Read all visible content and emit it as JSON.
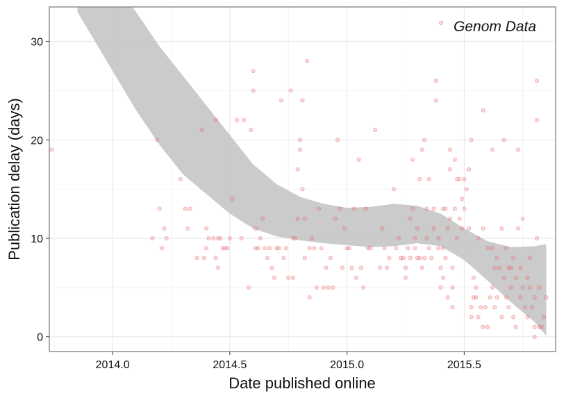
{
  "chart_data": {
    "type": "scatter",
    "title": "",
    "xlabel": "Date published online",
    "ylabel": "Publication delay (days)",
    "xlim": [
      2013.73,
      2015.89
    ],
    "ylim": [
      -1.5,
      33.5
    ],
    "x_ticks": [
      2014.0,
      2014.5,
      2015.0,
      2015.5
    ],
    "x_tick_labels": [
      "2014.0",
      "2014.5",
      "2015.0",
      "2015.5"
    ],
    "y_ticks": [
      0,
      10,
      20,
      30
    ],
    "y_tick_labels": [
      "0",
      "10",
      "20",
      "30"
    ],
    "grid": true,
    "legend_position": "top-right",
    "series": [
      {
        "name": "Genom Data",
        "points": [
          [
            2013.74,
            19
          ],
          [
            2014.17,
            10
          ],
          [
            2014.19,
            20
          ],
          [
            2014.2,
            13
          ],
          [
            2014.21,
            9
          ],
          [
            2014.22,
            11
          ],
          [
            2014.23,
            10
          ],
          [
            2014.29,
            16
          ],
          [
            2014.31,
            13
          ],
          [
            2014.32,
            11
          ],
          [
            2014.33,
            13
          ],
          [
            2014.36,
            8
          ],
          [
            2014.38,
            21
          ],
          [
            2014.39,
            8
          ],
          [
            2014.4,
            11
          ],
          [
            2014.4,
            9
          ],
          [
            2014.41,
            10
          ],
          [
            2014.43,
            10
          ],
          [
            2014.44,
            22
          ],
          [
            2014.44,
            8
          ],
          [
            2014.45,
            10
          ],
          [
            2014.45,
            7
          ],
          [
            2014.46,
            10
          ],
          [
            2014.47,
            9
          ],
          [
            2014.48,
            9
          ],
          [
            2014.49,
            9
          ],
          [
            2014.5,
            10
          ],
          [
            2014.51,
            14
          ],
          [
            2014.53,
            22
          ],
          [
            2014.55,
            10
          ],
          [
            2014.56,
            22
          ],
          [
            2014.58,
            5
          ],
          [
            2014.59,
            21
          ],
          [
            2014.6,
            27
          ],
          [
            2014.6,
            25
          ],
          [
            2014.61,
            11
          ],
          [
            2014.61,
            9
          ],
          [
            2014.62,
            9
          ],
          [
            2014.63,
            10
          ],
          [
            2014.64,
            12
          ],
          [
            2014.65,
            9
          ],
          [
            2014.66,
            8
          ],
          [
            2014.67,
            9
          ],
          [
            2014.68,
            7
          ],
          [
            2014.69,
            6
          ],
          [
            2014.7,
            9
          ],
          [
            2014.71,
            9
          ],
          [
            2014.72,
            24
          ],
          [
            2014.73,
            8
          ],
          [
            2014.74,
            9
          ],
          [
            2014.75,
            6
          ],
          [
            2014.76,
            25
          ],
          [
            2014.77,
            6
          ],
          [
            2014.77,
            10
          ],
          [
            2014.78,
            10
          ],
          [
            2014.79,
            12
          ],
          [
            2014.79,
            17
          ],
          [
            2014.8,
            20
          ],
          [
            2014.8,
            19
          ],
          [
            2014.81,
            24
          ],
          [
            2014.81,
            15
          ],
          [
            2014.82,
            12
          ],
          [
            2014.82,
            8
          ],
          [
            2014.83,
            28
          ],
          [
            2014.84,
            9
          ],
          [
            2014.84,
            4
          ],
          [
            2014.85,
            10
          ],
          [
            2014.86,
            9
          ],
          [
            2014.87,
            5
          ],
          [
            2014.88,
            13
          ],
          [
            2014.89,
            9
          ],
          [
            2014.9,
            5
          ],
          [
            2014.91,
            7
          ],
          [
            2014.92,
            5
          ],
          [
            2014.93,
            8
          ],
          [
            2014.94,
            5
          ],
          [
            2014.95,
            12
          ],
          [
            2014.96,
            20
          ],
          [
            2014.97,
            13
          ],
          [
            2014.98,
            7
          ],
          [
            2014.99,
            11
          ],
          [
            2015.0,
            9
          ],
          [
            2015.01,
            9
          ],
          [
            2015.02,
            7
          ],
          [
            2015.03,
            13
          ],
          [
            2015.04,
            6
          ],
          [
            2015.05,
            18
          ],
          [
            2015.06,
            7
          ],
          [
            2015.07,
            5
          ],
          [
            2015.08,
            13
          ],
          [
            2015.09,
            9
          ],
          [
            2015.1,
            9
          ],
          [
            2015.12,
            21
          ],
          [
            2015.14,
            7
          ],
          [
            2015.15,
            11
          ],
          [
            2015.16,
            9
          ],
          [
            2015.17,
            7
          ],
          [
            2015.18,
            8
          ],
          [
            2015.2,
            15
          ],
          [
            2015.21,
            9
          ],
          [
            2015.22,
            10
          ],
          [
            2015.23,
            8
          ],
          [
            2015.24,
            8
          ],
          [
            2015.25,
            7
          ],
          [
            2015.25,
            6
          ],
          [
            2015.26,
            9
          ],
          [
            2015.27,
            8
          ],
          [
            2015.27,
            12
          ],
          [
            2015.28,
            13
          ],
          [
            2015.28,
            18
          ],
          [
            2015.29,
            10
          ],
          [
            2015.29,
            9
          ],
          [
            2015.3,
            11
          ],
          [
            2015.3,
            8
          ],
          [
            2015.31,
            16
          ],
          [
            2015.31,
            8
          ],
          [
            2015.32,
            7
          ],
          [
            2015.32,
            19
          ],
          [
            2015.33,
            20
          ],
          [
            2015.33,
            8
          ],
          [
            2015.34,
            10
          ],
          [
            2015.34,
            13
          ],
          [
            2015.35,
            16
          ],
          [
            2015.35,
            9
          ],
          [
            2015.36,
            8
          ],
          [
            2015.37,
            11
          ],
          [
            2015.37,
            13
          ],
          [
            2015.38,
            26
          ],
          [
            2015.38,
            24
          ],
          [
            2015.39,
            10
          ],
          [
            2015.39,
            9
          ],
          [
            2015.4,
            7
          ],
          [
            2015.4,
            5
          ],
          [
            2015.41,
            9
          ],
          [
            2015.41,
            6
          ],
          [
            2015.41,
            13
          ],
          [
            2015.42,
            13
          ],
          [
            2015.42,
            8
          ],
          [
            2015.43,
            11
          ],
          [
            2015.43,
            4
          ],
          [
            2015.44,
            19
          ],
          [
            2015.44,
            17
          ],
          [
            2015.44,
            12
          ],
          [
            2015.45,
            3
          ],
          [
            2015.45,
            7
          ],
          [
            2015.45,
            5
          ],
          [
            2015.46,
            13
          ],
          [
            2015.46,
            18
          ],
          [
            2015.47,
            10
          ],
          [
            2015.47,
            16
          ],
          [
            2015.48,
            16
          ],
          [
            2015.48,
            12
          ],
          [
            2015.49,
            11
          ],
          [
            2015.49,
            14
          ],
          [
            2015.5,
            13
          ],
          [
            2015.5,
            16
          ],
          [
            2015.51,
            15
          ],
          [
            2015.52,
            17
          ],
          [
            2015.52,
            11
          ],
          [
            2015.53,
            20
          ],
          [
            2015.53,
            3
          ],
          [
            2015.53,
            2
          ],
          [
            2015.54,
            4
          ],
          [
            2015.54,
            6
          ],
          [
            2015.55,
            4
          ],
          [
            2015.55,
            5
          ],
          [
            2015.56,
            10
          ],
          [
            2015.56,
            2
          ],
          [
            2015.57,
            3
          ],
          [
            2015.58,
            23
          ],
          [
            2015.58,
            11
          ],
          [
            2015.58,
            1
          ],
          [
            2015.59,
            3
          ],
          [
            2015.6,
            9
          ],
          [
            2015.6,
            1
          ],
          [
            2015.61,
            4
          ],
          [
            2015.62,
            19
          ],
          [
            2015.62,
            9
          ],
          [
            2015.62,
            5
          ],
          [
            2015.63,
            7
          ],
          [
            2015.63,
            3
          ],
          [
            2015.64,
            8
          ],
          [
            2015.64,
            4
          ],
          [
            2015.65,
            7
          ],
          [
            2015.66,
            11
          ],
          [
            2015.66,
            2
          ],
          [
            2015.67,
            20
          ],
          [
            2015.67,
            6
          ],
          [
            2015.68,
            4
          ],
          [
            2015.68,
            9
          ],
          [
            2015.69,
            7
          ],
          [
            2015.69,
            3
          ],
          [
            2015.7,
            7
          ],
          [
            2015.7,
            5
          ],
          [
            2015.71,
            8
          ],
          [
            2015.71,
            2
          ],
          [
            2015.72,
            1
          ],
          [
            2015.72,
            6
          ],
          [
            2015.73,
            19
          ],
          [
            2015.73,
            11
          ],
          [
            2015.74,
            4
          ],
          [
            2015.74,
            7
          ],
          [
            2015.75,
            5
          ],
          [
            2015.75,
            12
          ],
          [
            2015.76,
            3
          ],
          [
            2015.77,
            2
          ],
          [
            2015.77,
            6
          ],
          [
            2015.78,
            8
          ],
          [
            2015.78,
            5
          ],
          [
            2015.79,
            3
          ],
          [
            2015.8,
            1
          ],
          [
            2015.8,
            4
          ],
          [
            2015.8,
            0
          ],
          [
            2015.81,
            10
          ],
          [
            2015.81,
            26
          ],
          [
            2015.81,
            22
          ],
          [
            2015.82,
            5
          ],
          [
            2015.82,
            1
          ],
          [
            2015.83,
            1
          ],
          [
            2015.84,
            2
          ],
          [
            2015.85,
            4
          ]
        ]
      }
    ],
    "smooth_band": {
      "x": [
        2013.85,
        2014.0,
        2014.1,
        2014.2,
        2014.3,
        2014.4,
        2014.5,
        2014.6,
        2014.7,
        2014.8,
        2014.9,
        2015.0,
        2015.1,
        2015.2,
        2015.3,
        2015.4,
        2015.5,
        2015.6,
        2015.7,
        2015.8,
        2015.85
      ],
      "lower": [
        33,
        27,
        23,
        19.5,
        16.5,
        14.5,
        12.5,
        11,
        10.2,
        9.8,
        9.5,
        9.3,
        9.1,
        9.2,
        9.5,
        9.2,
        7.8,
        5.7,
        3.5,
        1.5,
        0.1
      ],
      "upper": [
        44,
        36,
        33,
        29.5,
        26.5,
        23.5,
        20.5,
        17.5,
        15.5,
        14.2,
        13.5,
        13.1,
        13.2,
        13.5,
        13.3,
        12.5,
        11.0,
        9.7,
        9.1,
        9.2,
        9.4
      ]
    }
  }
}
